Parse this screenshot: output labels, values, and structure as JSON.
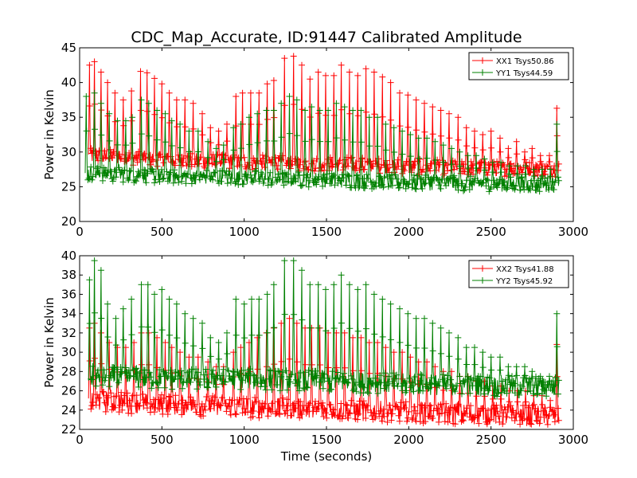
{
  "figure": {
    "title": "CDC_Map_Accurate, ID:91447 Calibrated Amplitude"
  },
  "chart_data": [
    {
      "type": "line",
      "title": "CDC_Map_Accurate, ID:91447 Calibrated Amplitude",
      "xlabel": "",
      "ylabel": "Power in Kelvin",
      "xlim": [
        0,
        3000
      ],
      "ylim": [
        20,
        45
      ],
      "xticks": [
        0,
        500,
        1000,
        1500,
        2000,
        2500,
        3000
      ],
      "yticks": [
        20,
        25,
        30,
        35,
        40,
        45
      ],
      "grid": false,
      "legend_position": "top-right",
      "marker": "+",
      "series": [
        {
          "name": "XX1 Tsys50.86",
          "color": "#ff0000",
          "baseline": [
            [
              0,
              29.5
            ],
            [
              500,
              29.0
            ],
            [
              1000,
              28.5
            ],
            [
              1500,
              28.3
            ],
            [
              2000,
              27.9
            ],
            [
              2500,
              27.6
            ],
            [
              2900,
              27.5
            ]
          ],
          "peaks": [
            [
              60,
              42.5
            ],
            [
              90,
              43.0
            ],
            [
              130,
              41.5
            ],
            [
              170,
              40.0
            ],
            [
              215,
              38.5
            ],
            [
              265,
              37.5
            ],
            [
              315,
              38.8
            ],
            [
              370,
              41.6
            ],
            [
              410,
              41.4
            ],
            [
              455,
              40.6
            ],
            [
              500,
              39.8
            ],
            [
              545,
              38.5
            ],
            [
              590,
              37.5
            ],
            [
              640,
              37.5
            ],
            [
              690,
              37.0
            ],
            [
              745,
              35.5
            ],
            [
              795,
              33.5
            ],
            [
              845,
              33.0
            ],
            [
              895,
              34.0
            ],
            [
              950,
              38.0
            ],
            [
              990,
              38.5
            ],
            [
              1040,
              38.5
            ],
            [
              1090,
              38.5
            ],
            [
              1140,
              39.8
            ],
            [
              1180,
              40.3
            ],
            [
              1245,
              43.5
            ],
            [
              1300,
              43.8
            ],
            [
              1350,
              42.5
            ],
            [
              1400,
              40.5
            ],
            [
              1450,
              41.5
            ],
            [
              1495,
              41.0
            ],
            [
              1545,
              41.0
            ],
            [
              1590,
              42.5
            ],
            [
              1640,
              41.5
            ],
            [
              1690,
              41.0
            ],
            [
              1740,
              42.0
            ],
            [
              1790,
              41.5
            ],
            [
              1840,
              40.8
            ],
            [
              1890,
              40.0
            ],
            [
              1945,
              38.5
            ],
            [
              1995,
              38.2
            ],
            [
              2045,
              37.5
            ],
            [
              2095,
              37.0
            ],
            [
              2145,
              36.5
            ],
            [
              2195,
              36.0
            ],
            [
              2245,
              35.5
            ],
            [
              2300,
              35.0
            ],
            [
              2350,
              33.5
            ],
            [
              2400,
              33.0
            ],
            [
              2450,
              32.5
            ],
            [
              2500,
              33.0
            ],
            [
              2555,
              32.0
            ],
            [
              2605,
              30.5
            ],
            [
              2655,
              31.5
            ],
            [
              2705,
              30.0
            ],
            [
              2750,
              30.5
            ],
            [
              2800,
              29.5
            ],
            [
              2855,
              29.5
            ],
            [
              2900,
              36.3
            ]
          ]
        },
        {
          "name": "YY1 Tsys44.59",
          "color": "#008000",
          "baseline": [
            [
              0,
              27.0
            ],
            [
              500,
              26.5
            ],
            [
              1000,
              26.3
            ],
            [
              1500,
              26.0
            ],
            [
              2000,
              25.6
            ],
            [
              2500,
              25.4
            ],
            [
              2900,
              25.3
            ]
          ],
          "peaks": [
            [
              40,
              38.0
            ],
            [
              90,
              38.5
            ],
            [
              130,
              37.0
            ],
            [
              180,
              35.5
            ],
            [
              230,
              34.5
            ],
            [
              280,
              34.5
            ],
            [
              320,
              35.0
            ],
            [
              375,
              37.5
            ],
            [
              420,
              37.0
            ],
            [
              470,
              36.0
            ],
            [
              520,
              35.5
            ],
            [
              560,
              34.5
            ],
            [
              610,
              34.0
            ],
            [
              665,
              33.0
            ],
            [
              720,
              33.0
            ],
            [
              780,
              31.5
            ],
            [
              830,
              30.5
            ],
            [
              875,
              31.0
            ],
            [
              935,
              33.5
            ],
            [
              980,
              34.0
            ],
            [
              1030,
              35.0
            ],
            [
              1080,
              35.5
            ],
            [
              1135,
              36.0
            ],
            [
              1180,
              36.0
            ],
            [
              1225,
              37.0
            ],
            [
              1275,
              38.0
            ],
            [
              1320,
              37.5
            ],
            [
              1370,
              36.0
            ],
            [
              1410,
              36.5
            ],
            [
              1460,
              36.0
            ],
            [
              1510,
              36.0
            ],
            [
              1560,
              37.0
            ],
            [
              1610,
              36.5
            ],
            [
              1660,
              36.0
            ],
            [
              1710,
              36.0
            ],
            [
              1760,
              35.0
            ],
            [
              1810,
              35.0
            ],
            [
              1860,
              34.0
            ],
            [
              1910,
              33.5
            ],
            [
              1960,
              33.0
            ],
            [
              2010,
              32.5
            ],
            [
              2060,
              32.0
            ],
            [
              2110,
              32.0
            ],
            [
              2160,
              31.5
            ],
            [
              2210,
              31.0
            ],
            [
              2260,
              30.5
            ],
            [
              2310,
              30.0
            ],
            [
              2360,
              29.5
            ],
            [
              2410,
              29.5
            ],
            [
              2460,
              29.0
            ],
            [
              2510,
              28.5
            ],
            [
              2560,
              28.5
            ],
            [
              2610,
              28.0
            ],
            [
              2660,
              28.0
            ],
            [
              2710,
              28.0
            ],
            [
              2760,
              27.5
            ],
            [
              2810,
              27.5
            ],
            [
              2860,
              27.5
            ],
            [
              2900,
              34.0
            ]
          ]
        }
      ]
    },
    {
      "type": "line",
      "title": "",
      "xlabel": "Time (seconds)",
      "ylabel": "Power in Kelvin",
      "xlim": [
        0,
        3000
      ],
      "ylim": [
        22,
        40
      ],
      "xticks": [
        0,
        500,
        1000,
        1500,
        2000,
        2500,
        3000
      ],
      "yticks": [
        22,
        24,
        26,
        28,
        30,
        32,
        34,
        36,
        38,
        40
      ],
      "grid": false,
      "legend_position": "top-right",
      "marker": "+",
      "series": [
        {
          "name": "XX2 Tsys41.88",
          "color": "#ff0000",
          "baseline": [
            [
              0,
              25.0
            ],
            [
              500,
              24.6
            ],
            [
              1000,
              24.3
            ],
            [
              1500,
              24.0
            ],
            [
              2000,
              23.8
            ],
            [
              2500,
              23.5
            ],
            [
              2900,
              23.4
            ]
          ],
          "peaks": [
            [
              60,
              32.5
            ],
            [
              90,
              33.0
            ],
            [
              130,
              32.0
            ],
            [
              180,
              31.0
            ],
            [
              230,
              30.5
            ],
            [
              280,
              30.5
            ],
            [
              330,
              31.0
            ],
            [
              375,
              32.0
            ],
            [
              420,
              32.0
            ],
            [
              470,
              31.5
            ],
            [
              520,
              31.0
            ],
            [
              560,
              30.5
            ],
            [
              610,
              30.0
            ],
            [
              665,
              29.5
            ],
            [
              720,
              29.5
            ],
            [
              780,
              29.0
            ],
            [
              830,
              28.5
            ],
            [
              875,
              28.5
            ],
            [
              935,
              30.0
            ],
            [
              980,
              30.5
            ],
            [
              1030,
              31.0
            ],
            [
              1080,
              31.5
            ],
            [
              1135,
              32.0
            ],
            [
              1180,
              32.5
            ],
            [
              1225,
              33.0
            ],
            [
              1275,
              33.5
            ],
            [
              1320,
              33.0
            ],
            [
              1370,
              32.5
            ],
            [
              1410,
              32.5
            ],
            [
              1460,
              32.5
            ],
            [
              1510,
              32.0
            ],
            [
              1560,
              32.0
            ],
            [
              1610,
              32.0
            ],
            [
              1660,
              31.5
            ],
            [
              1710,
              31.5
            ],
            [
              1760,
              31.0
            ],
            [
              1810,
              31.0
            ],
            [
              1860,
              30.5
            ],
            [
              1910,
              30.0
            ],
            [
              1960,
              30.0
            ],
            [
              2010,
              29.5
            ],
            [
              2060,
              29.0
            ],
            [
              2110,
              29.0
            ],
            [
              2160,
              28.5
            ],
            [
              2210,
              28.0
            ],
            [
              2260,
              28.0
            ],
            [
              2310,
              27.5
            ],
            [
              2360,
              27.5
            ],
            [
              2410,
              27.0
            ],
            [
              2460,
              27.0
            ],
            [
              2510,
              26.5
            ],
            [
              2560,
              26.5
            ],
            [
              2610,
              26.0
            ],
            [
              2660,
              26.0
            ],
            [
              2710,
              26.0
            ],
            [
              2760,
              25.5
            ],
            [
              2810,
              25.5
            ],
            [
              2860,
              25.0
            ],
            [
              2900,
              30.8
            ]
          ]
        },
        {
          "name": "YY2 Tsys45.92",
          "color": "#008000",
          "baseline": [
            [
              0,
              27.5
            ],
            [
              500,
              27.2
            ],
            [
              1000,
              27.2
            ],
            [
              1500,
              27.0
            ],
            [
              2000,
              26.7
            ],
            [
              2500,
              26.5
            ],
            [
              2900,
              26.4
            ]
          ],
          "peaks": [
            [
              60,
              37.5
            ],
            [
              90,
              39.5
            ],
            [
              130,
              38.5
            ],
            [
              170,
              35.0
            ],
            [
              220,
              33.5
            ],
            [
              265,
              34.5
            ],
            [
              315,
              35.5
            ],
            [
              375,
              37.0
            ],
            [
              415,
              37.0
            ],
            [
              455,
              36.0
            ],
            [
              500,
              36.5
            ],
            [
              545,
              35.5
            ],
            [
              590,
              35.0
            ],
            [
              640,
              34.0
            ],
            [
              690,
              33.5
            ],
            [
              745,
              33.0
            ],
            [
              795,
              31.5
            ],
            [
              845,
              31.0
            ],
            [
              895,
              32.0
            ],
            [
              950,
              35.5
            ],
            [
              1000,
              35.0
            ],
            [
              1045,
              35.5
            ],
            [
              1090,
              35.5
            ],
            [
              1140,
              36.0
            ],
            [
              1180,
              37.0
            ],
            [
              1245,
              39.5
            ],
            [
              1300,
              39.5
            ],
            [
              1350,
              38.5
            ],
            [
              1400,
              37.0
            ],
            [
              1450,
              37.0
            ],
            [
              1495,
              36.5
            ],
            [
              1545,
              37.0
            ],
            [
              1590,
              38.0
            ],
            [
              1640,
              37.0
            ],
            [
              1690,
              36.5
            ],
            [
              1740,
              37.0
            ],
            [
              1790,
              36.0
            ],
            [
              1840,
              35.5
            ],
            [
              1890,
              35.0
            ],
            [
              1945,
              34.5
            ],
            [
              1995,
              34.0
            ],
            [
              2045,
              33.5
            ],
            [
              2095,
              33.5
            ],
            [
              2145,
              33.0
            ],
            [
              2195,
              32.5
            ],
            [
              2245,
              32.0
            ],
            [
              2300,
              31.5
            ],
            [
              2350,
              30.5
            ],
            [
              2400,
              30.5
            ],
            [
              2450,
              30.0
            ],
            [
              2500,
              29.5
            ],
            [
              2555,
              29.5
            ],
            [
              2605,
              28.5
            ],
            [
              2655,
              28.5
            ],
            [
              2705,
              28.5
            ],
            [
              2750,
              28.0
            ],
            [
              2800,
              27.5
            ],
            [
              2855,
              27.5
            ],
            [
              2900,
              34.0
            ]
          ]
        }
      ]
    }
  ]
}
